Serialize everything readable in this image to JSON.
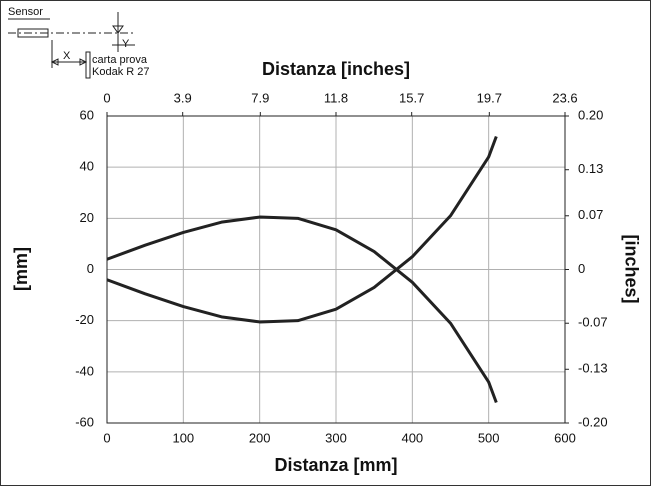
{
  "chart_data": {
    "type": "line",
    "title": "Distanza [inches]",
    "xlabel": "Distanza [mm]",
    "ylabel": "[mm]",
    "y2label": "[inches]",
    "diagram_labels": [
      "Sensor",
      "X",
      "Y",
      "carta prova",
      "Kodak R 27"
    ],
    "x": [
      0,
      50,
      100,
      150,
      200,
      250,
      300,
      350,
      400,
      450,
      500,
      510
    ],
    "series": [
      {
        "color": "#222222",
        "values": [
          4,
          9.5,
          14.5,
          18.5,
          20.5,
          20,
          15.5,
          7,
          -5,
          -21,
          -44,
          -52
        ]
      },
      {
        "color": "#222222",
        "values": [
          -4,
          -9.5,
          -14.5,
          -18.5,
          -20.5,
          -20,
          -15.5,
          -7,
          5,
          21,
          44,
          52
        ]
      }
    ],
    "xlim": [
      0,
      600
    ],
    "xticks": [
      0,
      100,
      200,
      300,
      400,
      500,
      600
    ],
    "x2lim": [
      0,
      23.6
    ],
    "x2ticks": [
      0,
      3.9,
      7.9,
      11.8,
      15.7,
      19.7,
      23.6
    ],
    "ylim": [
      -60,
      60
    ],
    "yticks": [
      -60,
      -40,
      -20,
      0,
      20,
      40,
      60
    ],
    "y2lim": [
      -0.2,
      0.2
    ],
    "y2ticks": [
      {
        "value": -0.2,
        "label": "-0.20"
      },
      -0.13,
      -0.07,
      0,
      0.07,
      0.13,
      {
        "value": 0.2,
        "label": "0.20"
      }
    ],
    "grid": true
  }
}
